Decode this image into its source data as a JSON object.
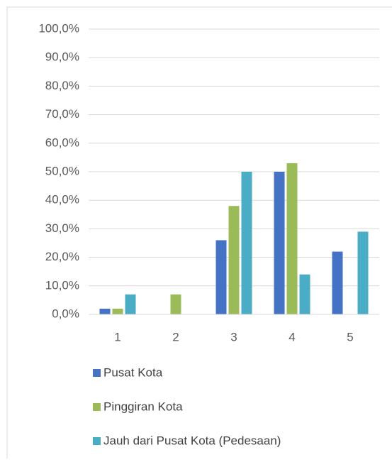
{
  "chart_data": {
    "type": "bar",
    "categories": [
      "1",
      "2",
      "3",
      "4",
      "5"
    ],
    "series": [
      {
        "name": "Pusat Kota",
        "color": "#4472c4",
        "values": [
          2,
          0,
          26,
          50,
          22
        ]
      },
      {
        "name": "Pinggiran Kota",
        "color": "#9bbb59",
        "values": [
          2,
          7,
          38,
          53,
          0
        ]
      },
      {
        "name": "Jauh dari Pusat Kota (Pedesaan)",
        "color": "#4bacc6",
        "values": [
          7,
          0,
          50,
          14,
          29
        ]
      }
    ],
    "ylim": [
      0,
      100
    ],
    "yticks": [
      {
        "value": 0,
        "label": "0,0%"
      },
      {
        "value": 10,
        "label": "10,0%"
      },
      {
        "value": 20,
        "label": "20,0%"
      },
      {
        "value": 30,
        "label": "30,0%"
      },
      {
        "value": 40,
        "label": "40,0%"
      },
      {
        "value": 50,
        "label": "50,0%"
      },
      {
        "value": 60,
        "label": "60,0%"
      },
      {
        "value": 70,
        "label": "70,0%"
      },
      {
        "value": 80,
        "label": "80,0%"
      },
      {
        "value": 90,
        "label": "90,0%"
      },
      {
        "value": 100,
        "label": "100,0%"
      }
    ],
    "grid": true,
    "legend": "bottom"
  }
}
